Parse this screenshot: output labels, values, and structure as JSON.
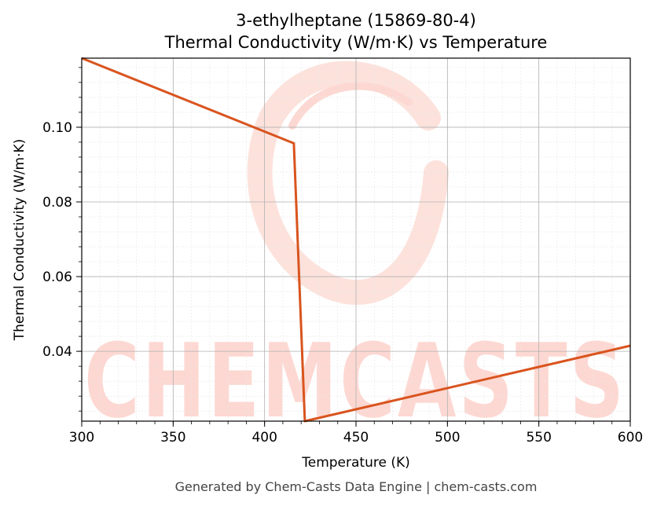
{
  "chart_data": {
    "type": "line",
    "title_line1": "3-ethylheptane (15869-80-4)",
    "title_line2": "Thermal Conductivity (W/m·K) vs Temperature",
    "xlabel": "Temperature (K)",
    "ylabel": "Thermal Conductivity (W/m·K)",
    "xlim": [
      300,
      600
    ],
    "ylim": [
      0.0213,
      0.1185
    ],
    "x_ticks": [
      300,
      350,
      400,
      450,
      500,
      550,
      600
    ],
    "x_tick_labels": [
      "300",
      "350",
      "400",
      "450",
      "500",
      "550",
      "600"
    ],
    "y_ticks": [
      0.04,
      0.06,
      0.08,
      0.1
    ],
    "y_tick_labels": [
      "0.04",
      "0.06",
      "0.08",
      "0.10"
    ],
    "grid": true,
    "series": [
      {
        "color": "#d9541e",
        "x": [
          300,
          416,
          422,
          600
        ],
        "y": [
          0.1185,
          0.0957,
          0.0213,
          0.0415
        ]
      }
    ]
  },
  "watermark": {
    "text": "CHEMCASTS",
    "color": "#fdd8d2"
  },
  "footer": "Generated by Chem-Casts Data Engine | chem-casts.com"
}
